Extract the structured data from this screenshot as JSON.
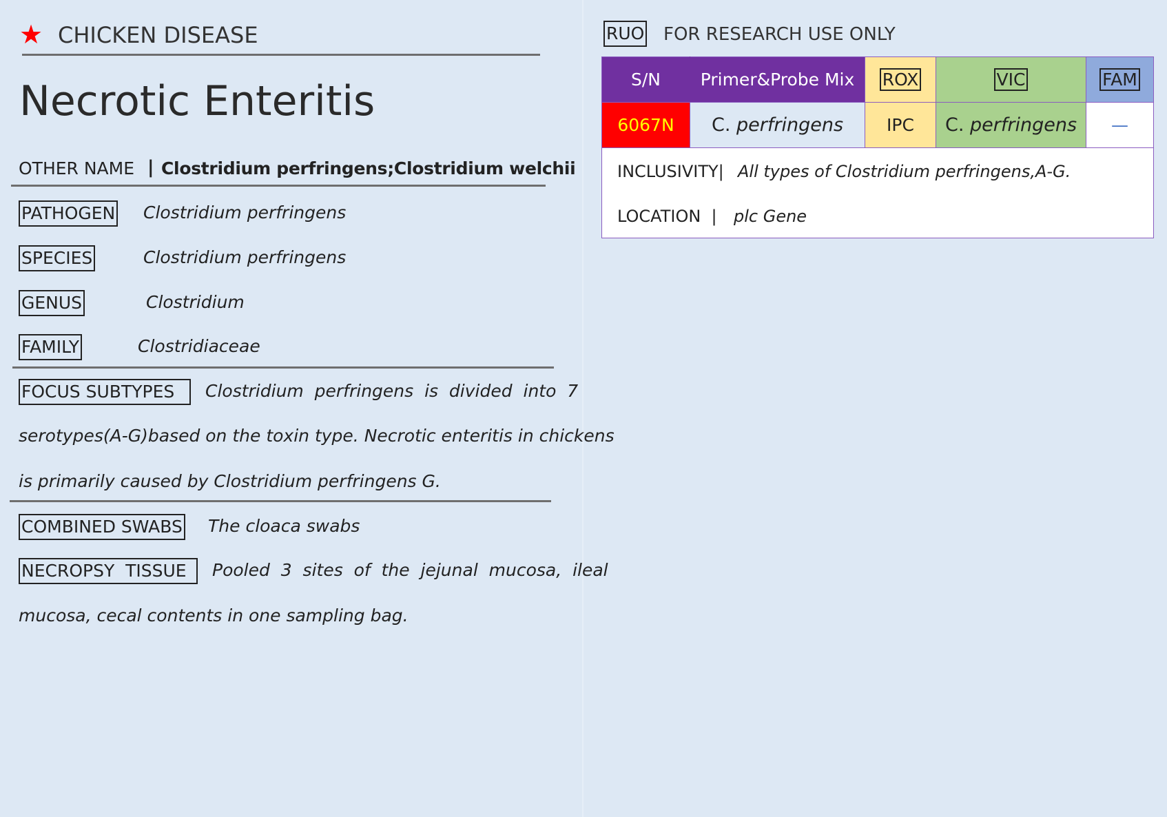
{
  "left": {
    "category": "CHICKEN DISEASE",
    "category_icon": "star-icon",
    "star_color": "#ff0000",
    "title": "Necrotic Enteritis",
    "other_name_label": "OTHER NAME",
    "other_name_sep": "|",
    "other_name_value": "Clostridium perfringens;Clostridium welchii",
    "taxonomy": [
      {
        "label": "PATHOGEN",
        "value": "Clostridium perfringens"
      },
      {
        "label": "SPECIES",
        "value": "Clostridium perfringens"
      },
      {
        "label": "GENUS",
        "value": "Clostridium"
      },
      {
        "label": "FAMILY",
        "value": "Clostridiaceae"
      }
    ],
    "focus_label": "FOCUS  SUBTYPES",
    "focus_lines": [
      "Clostridium  perfringens  is  divided  into  7",
      "serotypes(A-G)based on the toxin type. Necrotic enteritis in chickens",
      "is primarily caused by Clostridium perfringens G."
    ],
    "swabs_label": "COMBINED SWABS",
    "swabs_value": "The cloaca swabs",
    "tissue_label": "NECROPSY  TISSUE",
    "tissue_lines": [
      "Pooled  3  sites  of  the  jejunal  mucosa,  ileal",
      "mucosa, cecal contents in one sampling bag."
    ]
  },
  "right": {
    "ruo_badge": "RUO",
    "ruo_text": "FOR RESEARCH USE ONLY",
    "headers": {
      "sn": "S/N",
      "mix": "Primer&Probe Mix",
      "rox": "ROX",
      "vic": "VIC",
      "fam": "FAM"
    },
    "row": {
      "sn": "6067N",
      "mix_prefix": "C.",
      "mix_italic": "perfringens",
      "rox": "IPC",
      "vic_prefix": "C.",
      "vic_italic": "perfringens",
      "fam": "—"
    },
    "inclusivity_label": "INCLUSIVITY|",
    "inclusivity_value": "All types of Clostridium perfringens,A-G.",
    "location_label": "LOCATION  |",
    "location_value": "plc Gene",
    "colors": {
      "purple": "#7030a0",
      "red": "#ff0000",
      "yellow_text": "#ffff00",
      "rox": "#ffe699",
      "vic": "#a9d18e",
      "fam": "#8faadc",
      "fam_dash": "#4472c4"
    }
  }
}
